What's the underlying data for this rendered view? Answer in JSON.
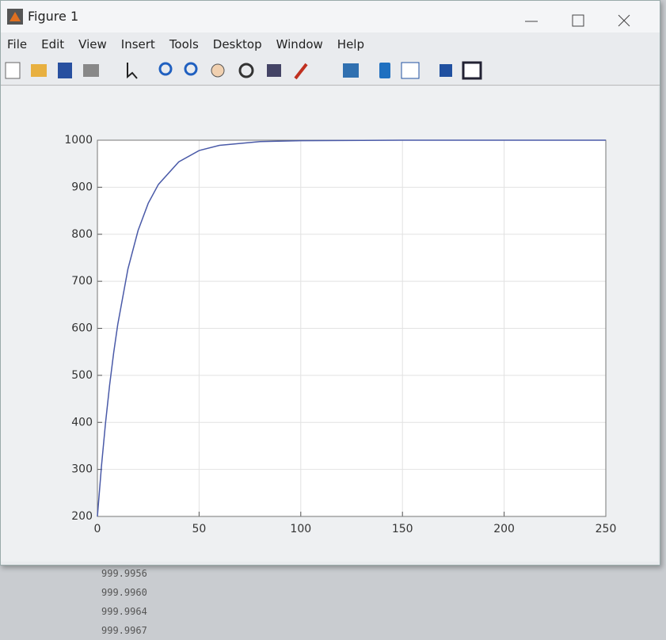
{
  "window": {
    "title": "Figure 1",
    "menu": [
      "File",
      "Edit",
      "View",
      "Insert",
      "Tools",
      "Desktop",
      "Window",
      "Help"
    ]
  },
  "chart_data": {
    "type": "line",
    "x": [
      0,
      2,
      4,
      6,
      8,
      10,
      15,
      20,
      25,
      30,
      40,
      50,
      60,
      80,
      100,
      150,
      200,
      250
    ],
    "series": [
      {
        "color": "#4a5aa8",
        "values": [
          200,
          307,
          399,
          479,
          548,
          608,
          726,
          808,
          866,
          906,
          954,
          978,
          989,
          997,
          999,
          1000,
          1000,
          1000
        ]
      }
    ],
    "xlim": [
      0,
      250
    ],
    "xticks": [
      0,
      50,
      100,
      150,
      200,
      250
    ],
    "ylim": [
      200,
      1000
    ],
    "yticks": [
      200,
      300,
      400,
      500,
      600,
      700,
      800,
      900,
      1000
    ],
    "grid": true
  },
  "console": {
    "lines": [
      "999.9956",
      "999.9960",
      "999.9964",
      "999.9967"
    ]
  }
}
